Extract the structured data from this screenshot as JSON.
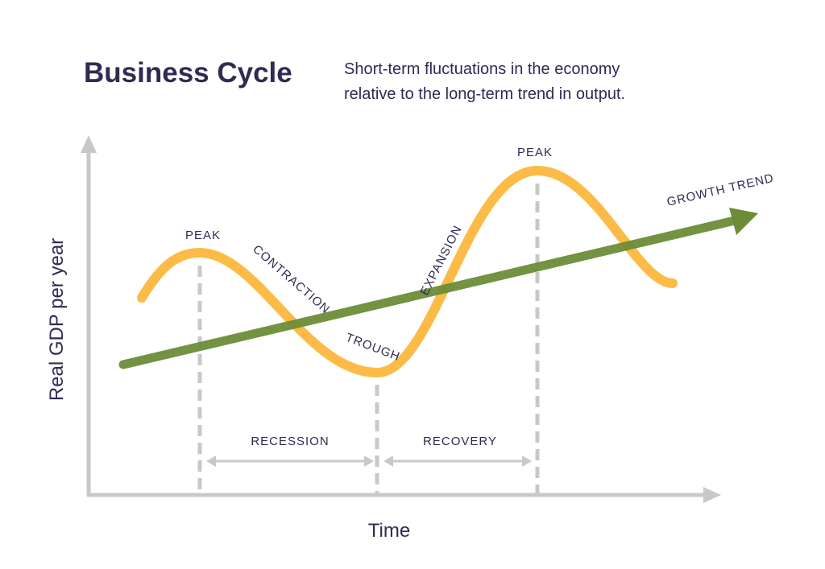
{
  "header": {
    "title": "Business Cycle",
    "subtitle": [
      "Short-term fluctuations in the economy",
      "relative to the long-term trend in output."
    ]
  },
  "axes": {
    "y_label": "Real GDP per year",
    "x_label": "Time"
  },
  "labels": {
    "peak_1": "PEAK",
    "contraction": "CONTRACTION",
    "trough": "TROUGH",
    "expansion": "EXPANSION",
    "peak_2": "PEAK",
    "growth_trend": "GROWTH TREND",
    "recession": "RECESSION",
    "recovery": "RECOVERY"
  }
}
